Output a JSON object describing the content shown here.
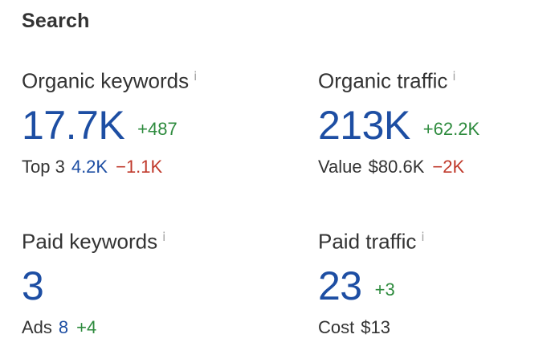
{
  "section_title": "Search",
  "info_icon_glyph": "i",
  "metrics": {
    "organic_keywords": {
      "label": "Organic keywords",
      "value": "17.7K",
      "delta": "+487",
      "sub": {
        "label": "Top 3",
        "value": "4.2K",
        "delta": "−1.1K"
      }
    },
    "organic_traffic": {
      "label": "Organic traffic",
      "value": "213K",
      "delta": "+62.2K",
      "sub": {
        "label": "Value",
        "value": "$80.6K",
        "delta": "−2K"
      }
    },
    "paid_keywords": {
      "label": "Paid keywords",
      "value": "3",
      "sub": {
        "label": "Ads",
        "value": "8",
        "delta": "+4"
      }
    },
    "paid_traffic": {
      "label": "Paid traffic",
      "value": "23",
      "delta": "+3",
      "sub": {
        "label": "Cost",
        "value": "$13"
      }
    }
  },
  "colors": {
    "primary_value": "#1d4ea3",
    "positive": "#2e8b3e",
    "negative": "#c0392b",
    "text": "#333333",
    "info_icon": "#a0a0a0"
  }
}
